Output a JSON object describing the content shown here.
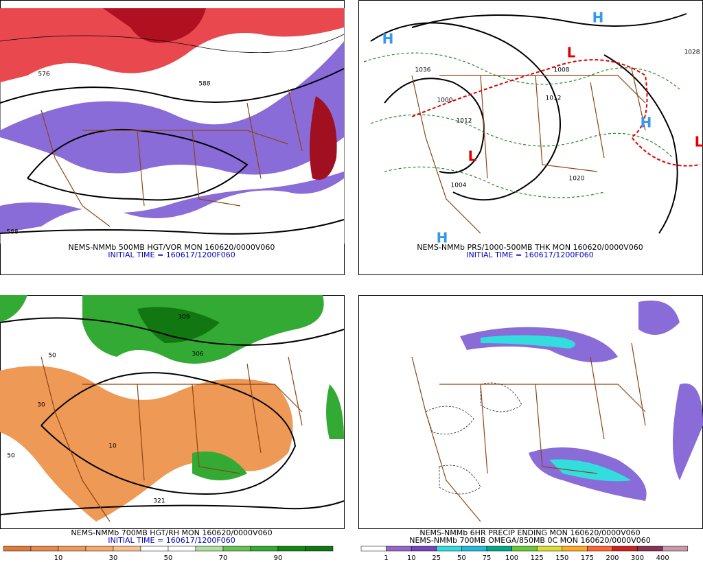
{
  "panels": [
    {
      "caption": [
        "NEMS-NMMb 500MB HGT/VOR MON 160620/0000V060",
        "INITIAL TIME = 160617/1200F060"
      ],
      "labels": [
        "576",
        "588",
        "588"
      ]
    },
    {
      "caption": [
        "NEMS-NMMb PRS/1000-500MB THK MON 160620/0000V060",
        "INITIAL TIME = 160617/1200F060"
      ],
      "symbols": [
        "H",
        "H",
        "H",
        "L",
        "L",
        "H",
        "L"
      ],
      "labels": [
        "1036",
        "1000",
        "1008",
        "1012",
        "1012",
        "1004",
        "1020",
        "1028"
      ]
    },
    {
      "caption": [
        "NEMS-NMMb 700MB HGT/RH MON 160620/0000V060",
        "INITIAL TIME = 160617/1200F060"
      ],
      "labels": [
        "309",
        "306",
        "321",
        "50",
        "50",
        "10",
        "30"
      ],
      "colorbar": [
        10,
        30,
        50,
        70,
        90
      ]
    },
    {
      "caption": [
        "NEMS-NMMb 6HR PRECIP ENDING MON 160620/0000V060",
        "NEMS-NMMb 700MB OMEGA/850MB 0C MON 160620/0000V060"
      ],
      "colorbar": [
        1,
        10,
        25,
        50,
        75,
        100,
        125,
        150,
        175,
        200,
        300,
        400
      ]
    }
  ]
}
